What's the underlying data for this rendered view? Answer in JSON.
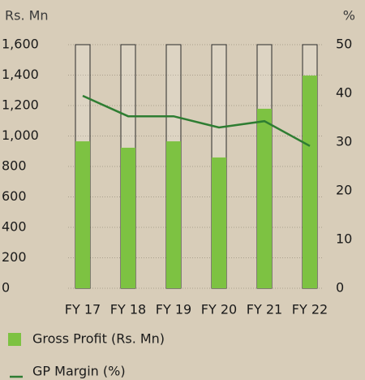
{
  "chart_data": {
    "type": "bar",
    "ylabel": "Rs. Mn",
    "y2label": "%",
    "categories": [
      "FY 17",
      "FY 18",
      "FY 19",
      "FY 20",
      "FY 21",
      "FY 22"
    ],
    "series": [
      {
        "name": "Gross Profit (Rs. Mn)",
        "type": "bar",
        "color": "#7dc242",
        "values": [
          965,
          923,
          965,
          859,
          1179,
          1397
        ]
      },
      {
        "name": "GP Margin (%)",
        "type": "line",
        "axis": "y2",
        "color": "#2e7d32",
        "values": [
          39.5,
          35.3,
          35.3,
          33.0,
          34.3,
          29.2
        ]
      }
    ],
    "ylim": [
      0,
      1600
    ],
    "yticks": [
      0,
      200,
      400,
      600,
      800,
      {
        "value": 1000,
        "label": "1,000"
      },
      {
        "value": 1200,
        "label": "1,200"
      },
      {
        "value": 1400,
        "label": "1,400"
      },
      {
        "value": 1600,
        "label": "1,600"
      }
    ],
    "y2lim": [
      0,
      50
    ],
    "y2ticks": [
      0,
      10,
      20,
      30,
      40,
      50
    ],
    "grid": true
  }
}
